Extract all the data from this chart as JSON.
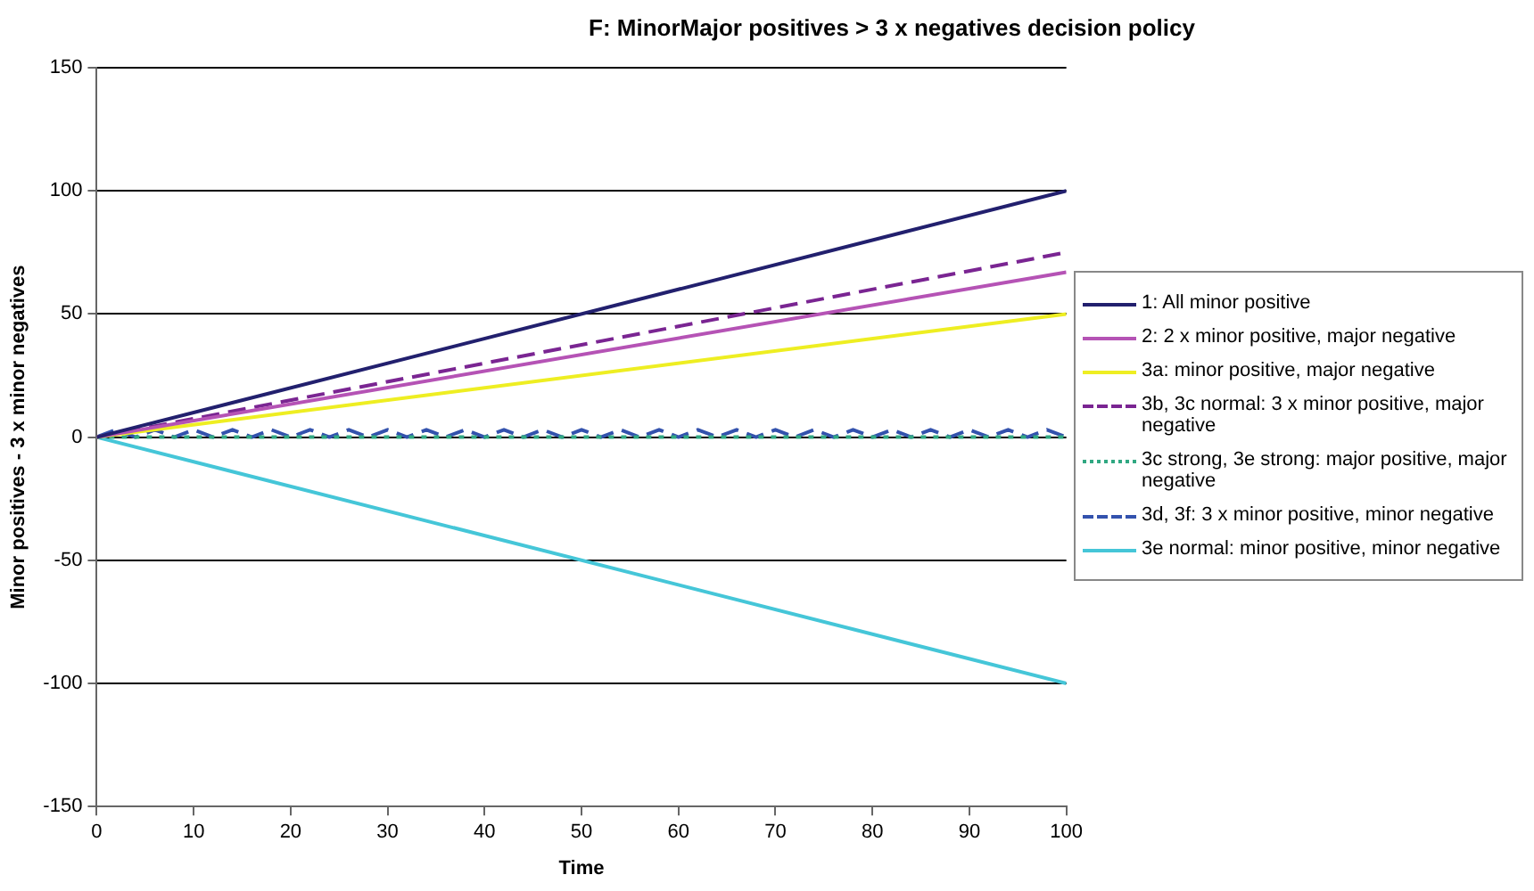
{
  "chart_data": {
    "type": "line",
    "title": "F: MinorMajor positives > 3 x negatives decision policy",
    "xlabel": "Time",
    "ylabel": "Minor positives - 3 x minor negatives",
    "xlim": [
      0,
      100
    ],
    "xticks": [
      0,
      10,
      20,
      30,
      40,
      50,
      60,
      70,
      80,
      90,
      100
    ],
    "ylim": [
      -150,
      150
    ],
    "yticks": [
      -150,
      -100,
      -50,
      0,
      50,
      100,
      150
    ],
    "grid": "y",
    "legend": "right",
    "marker": "none",
    "series": [
      {
        "name": "1: All minor positive",
        "color": "#22206e",
        "line_style": "solid",
        "x": [
          0,
          100
        ],
        "values": [
          0,
          100
        ]
      },
      {
        "name": "2: 2 x minor positive, major negative",
        "color": "#b553b5",
        "line_style": "solid",
        "x": [
          0,
          100
        ],
        "values": [
          0,
          67
        ]
      },
      {
        "name": "3a: minor positive, major negative",
        "color": "#eeee22",
        "line_style": "solid",
        "x": [
          0,
          100
        ],
        "values": [
          0,
          50
        ]
      },
      {
        "name": "3b, 3c normal: 3 x minor positive, major negative",
        "color": "#7a2592",
        "line_style": "dashed",
        "x": [
          0,
          100
        ],
        "values": [
          0,
          75
        ]
      },
      {
        "name": "3c strong, 3e strong: major positive, major negative",
        "color": "#30a882",
        "line_style": "dotted",
        "x": [
          0,
          100
        ],
        "values": [
          0,
          0
        ]
      },
      {
        "name": "3d, 3f: 3 x minor positive, minor negative",
        "color": "#3352ad",
        "line_style": "dashed",
        "x": [
          0,
          2,
          4,
          6,
          8,
          10,
          12,
          14,
          16,
          18,
          20,
          22,
          24,
          26,
          28,
          30,
          32,
          34,
          36,
          38,
          40,
          42,
          44,
          46,
          48,
          50,
          52,
          54,
          56,
          58,
          60,
          62,
          64,
          66,
          68,
          70,
          72,
          74,
          76,
          78,
          80,
          82,
          84,
          86,
          88,
          90,
          92,
          94,
          96,
          98,
          100
        ],
        "values": [
          0,
          3,
          0,
          3,
          0,
          3,
          0,
          3,
          0,
          3,
          0,
          3,
          0,
          3,
          0,
          3,
          0,
          3,
          0,
          3,
          0,
          3,
          0,
          3,
          0,
          3,
          0,
          3,
          0,
          3,
          0,
          3,
          0,
          3,
          0,
          3,
          0,
          3,
          0,
          3,
          0,
          3,
          0,
          3,
          0,
          3,
          0,
          3,
          0,
          3,
          0
        ]
      },
      {
        "name": "3e normal: minor positive, minor negative",
        "color": "#45c6d8",
        "line_style": "solid",
        "x": [
          0,
          100
        ],
        "values": [
          0,
          -100
        ]
      }
    ]
  }
}
